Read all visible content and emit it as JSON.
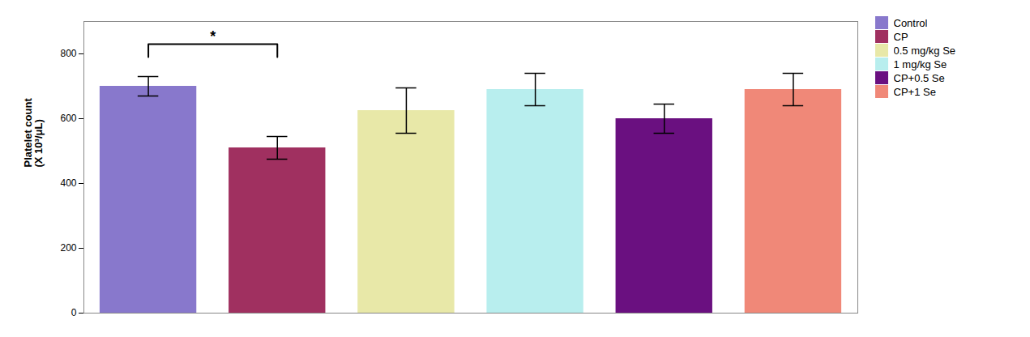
{
  "chart_data": {
    "type": "bar",
    "categories": [
      "Control",
      "CP",
      "0.5 mg/kg Se",
      "1 mg/kg Se",
      "CP+0.5 Se",
      "CP+1 Se"
    ],
    "values": [
      700,
      510,
      625,
      690,
      600,
      690
    ],
    "errors": [
      30,
      35,
      70,
      50,
      45,
      50
    ],
    "colors": [
      "#8878cc",
      "#a03060",
      "#e8e8a8",
      "#b8eeee",
      "#6a1080",
      "#f08878"
    ],
    "ylabel": "Platelet count\n(X 10³/μL)",
    "ylim": [
      0,
      900
    ],
    "yticks": [
      0,
      200,
      400,
      600,
      800
    ],
    "annotations": [
      {
        "text": "*",
        "from": "Control",
        "to": "CP",
        "y_top": 830,
        "y_bottom": 790
      }
    ],
    "legend": "right",
    "tick_labels": "y",
    "grid": false
  }
}
